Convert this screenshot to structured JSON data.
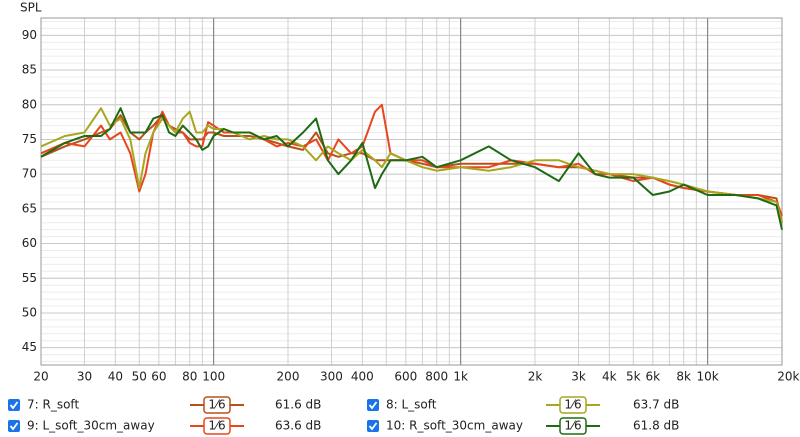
{
  "chart_data": {
    "type": "line",
    "ylabel": "SPL",
    "x": [
      20,
      25,
      30,
      35,
      38,
      42,
      46,
      50,
      53,
      57,
      62,
      66,
      70,
      75,
      80,
      85,
      90,
      95,
      100,
      110,
      120,
      140,
      160,
      180,
      200,
      230,
      260,
      290,
      320,
      360,
      400,
      450,
      480,
      520,
      600,
      700,
      800,
      1000,
      1300,
      1600,
      2000,
      2500,
      3000,
      3500,
      4000,
      5000,
      6000,
      7000,
      8000,
      10000,
      13000,
      16000,
      19000,
      20000
    ],
    "xlim": [
      20,
      20000
    ],
    "xscale": "log",
    "ylim": [
      42.5,
      92.5
    ],
    "yticks": [
      45,
      50,
      55,
      60,
      65,
      70,
      75,
      80,
      85,
      90
    ],
    "xticks": [
      20,
      30,
      40,
      50,
      60,
      80,
      100,
      200,
      300,
      400,
      600,
      800,
      {
        "value": 1000,
        "label": "1k"
      },
      {
        "value": 2000,
        "label": "2k"
      },
      {
        "value": 3000,
        "label": "3k"
      },
      {
        "value": 4000,
        "label": "4k"
      },
      {
        "value": 5000,
        "label": "5k"
      },
      {
        "value": 6000,
        "label": "6k"
      },
      {
        "value": 8000,
        "label": "8k"
      },
      {
        "value": 10000,
        "label": "10k"
      },
      {
        "value": 20000,
        "label": "20kHz"
      }
    ],
    "x_minor_grid": [
      70,
      90,
      500,
      700,
      900,
      7000,
      9000
    ],
    "x_major_grid": [
      100,
      1000,
      10000
    ],
    "y_minor_grid_step": 1,
    "grid": true,
    "series": [
      {
        "name": "7: R_soft",
        "color": "#b8501c",
        "smoothing": "1⁄6",
        "level": "61.6 dB",
        "values": [
          72.5,
          74,
          75,
          76,
          76.5,
          78.5,
          76,
          75,
          76,
          77,
          78.5,
          77,
          76.5,
          76,
          75,
          75,
          75,
          76,
          76,
          75.5,
          75.5,
          75.5,
          75,
          74.5,
          74,
          73.5,
          76,
          73,
          72.5,
          73,
          73,
          72,
          72,
          72,
          72,
          71.5,
          71,
          71.5,
          71.5,
          71.5,
          71.5,
          71,
          71,
          70.5,
          70,
          69.5,
          69.5,
          68.5,
          68,
          67.5,
          67,
          67,
          66.5,
          63
        ]
      },
      {
        "name": "9: L_soft_30cm_away",
        "color": "#e8461e",
        "smoothing": "1⁄6",
        "level": "63.6 dB",
        "values": [
          73,
          74.5,
          74,
          77,
          75,
          76,
          73,
          67.5,
          70,
          76,
          79,
          77,
          76,
          76,
          74.5,
          74,
          74,
          77.5,
          77,
          76,
          76,
          76,
          75,
          74,
          74.5,
          74,
          75,
          72,
          75,
          73,
          74,
          79,
          80,
          73,
          72,
          72,
          71,
          71,
          71,
          72,
          71.5,
          71,
          71.5,
          70,
          70,
          69,
          69.5,
          68.5,
          68,
          67.5,
          67,
          67,
          66,
          64
        ]
      },
      {
        "name": "8: L_soft",
        "color": "#a8a61e",
        "smoothing": "1⁄6",
        "level": "63.7 dB",
        "values": [
          74,
          75.5,
          76,
          79.5,
          77,
          78,
          75,
          68,
          73,
          76,
          78,
          77,
          76,
          78,
          79,
          76,
          76,
          77,
          76.5,
          76.5,
          76,
          75,
          75.5,
          75,
          75,
          74,
          72,
          74,
          73,
          72,
          73.5,
          72,
          71,
          73,
          72,
          71,
          70.5,
          71,
          70.5,
          71,
          72,
          72,
          71,
          70.5,
          70,
          70,
          69.5,
          69,
          68.5,
          67.5,
          67,
          66.5,
          66,
          63
        ]
      },
      {
        "name": "10: R_soft_30cm_away",
        "color": "#1e6b14",
        "smoothing": "1⁄6",
        "level": "61.8 dB",
        "values": [
          72.5,
          74.5,
          75.5,
          75.5,
          76.5,
          79.5,
          76,
          76,
          76,
          78,
          78.5,
          76,
          75.5,
          77,
          76,
          75,
          73.5,
          74,
          75.5,
          76.5,
          76,
          76,
          75,
          75.5,
          74,
          76,
          78,
          72,
          70,
          72,
          74.5,
          68,
          70,
          72,
          72,
          72.5,
          71,
          72,
          74,
          72,
          71,
          69,
          73,
          70,
          69.5,
          69.5,
          67,
          67.5,
          68.5,
          67,
          67,
          66.5,
          65.5,
          62
        ]
      }
    ]
  }
}
